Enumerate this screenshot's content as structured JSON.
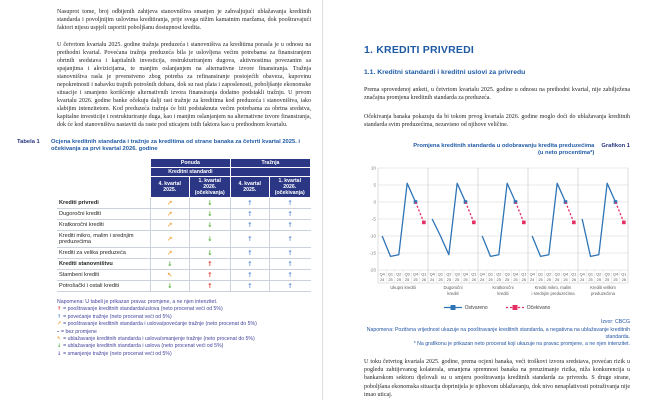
{
  "page_left": {
    "paragraph1": "Nasuprot tome, broj odbijenih zahtjeva stanovništva smanjen je zahvaljujući ublažavanja kreditnih standarda i povoljnijim uslovima kreditiranja, prije svega nižim kamatnim maržama, dok pooštravajući faktori nijesu uspjeli usporiti poboljšanu dostupnost kredita.",
    "paragraph2": "U četvrtom kvartalu 2025. godine tražnja preduzeća i stanovništva za kreditima porasla je u odnosu na prethodni kvartal. Povećana tražnja preduzeća bila je uslovljena većim potrebama za finansiranjem obrtnih sredstava i kapitalnih investicija, restrukturiranjem dugova, aktivnostima povezanim sa spajanjima i akvizicijama, te manjim oslanjanjem na alternativne izvore finansiranja. Tražnja stanovništva rasla je prvenstveno zbog potreba za refinansiranje postojećih obaveza, kupovinu nepokretnosti i nabavku trajnih potrošnih dobara, dok su rast plata i zaposlenosti, poboljšanje ekonomske situacije i smanjeno korišćenje alternativnih izvora finansiranja dodatno podstakli tražnju. U prvom kvartalu 2026. godine banke očekuju dalji rast tražnje za kreditima kod preduzeća i stanovništva, iako slabijim intenzitetom. Kod preduzeća tražnja će biti podstaknuta većim potrebama za obrtna sredstva, kapitalne investicije i restrukturiranje duga, kao i manjim oslanjanjem na alternativne izvore finansiranja, dok će kod stanovništva nastaviti da raste pod uticajem istih faktora kao u prethodnom kvartalu.",
    "table": {
      "label": "Tabela 1",
      "caption": "Ocjena kreditnih standarda i tražnje za kreditima od strane banaka za četvrti kvartal 2025. i očekivanja za prvi kvartal 2026. godine",
      "col_groups": [
        "Ponuda",
        "Tražnja"
      ],
      "sub_group": "Kreditni standardi",
      "col_headers": [
        "4. kvartal 2025.",
        "1. kvartal 2026. (očekivanja)",
        "4. kvartal 2025.",
        "1. kvartal 2026. (očekivanja)"
      ],
      "rows": [
        {
          "label": "Krediti privredi",
          "bold": true,
          "cells": [
            {
              "glyph": "↗",
              "color": "orange"
            },
            {
              "glyph": "↓",
              "color": "green"
            },
            {
              "glyph": "↑",
              "color": "blue"
            },
            {
              "glyph": "↑",
              "color": "blue"
            }
          ]
        },
        {
          "label": "Dugoročni krediti",
          "bold": false,
          "cells": [
            {
              "glyph": "↗",
              "color": "orange"
            },
            {
              "glyph": "↓",
              "color": "green"
            },
            {
              "glyph": "↑",
              "color": "blue"
            },
            {
              "glyph": "↑",
              "color": "blue"
            }
          ]
        },
        {
          "label": "Kratkoročni krediti",
          "bold": false,
          "cells": [
            {
              "glyph": "↗",
              "color": "orange"
            },
            {
              "glyph": "↓",
              "color": "green"
            },
            {
              "glyph": "↑",
              "color": "blue"
            },
            {
              "glyph": "↑",
              "color": "blue"
            }
          ]
        },
        {
          "label": "Krediti mikro, malim i srednjim preduzećima",
          "bold": false,
          "cells": [
            {
              "glyph": "↗",
              "color": "orange"
            },
            {
              "glyph": "↓",
              "color": "green"
            },
            {
              "glyph": "↑",
              "color": "blue"
            },
            {
              "glyph": "↑",
              "color": "blue"
            }
          ]
        },
        {
          "label": "Krediti za velika preduzeća",
          "bold": false,
          "cells": [
            {
              "glyph": "↗",
              "color": "orange"
            },
            {
              "glyph": "↓",
              "color": "green"
            },
            {
              "glyph": "↑",
              "color": "blue"
            },
            {
              "glyph": "↑",
              "color": "blue"
            }
          ]
        },
        {
          "label": "Krediti stanovništvu",
          "bold": true,
          "cells": [
            {
              "glyph": "↓",
              "color": "green"
            },
            {
              "glyph": "↑",
              "color": "red"
            },
            {
              "glyph": "↑",
              "color": "blue"
            },
            {
              "glyph": "↑",
              "color": "blue"
            }
          ]
        },
        {
          "label": "Stambeni krediti",
          "bold": false,
          "cells": [
            {
              "glyph": "↖",
              "color": "orange"
            },
            {
              "glyph": "↑",
              "color": "red"
            },
            {
              "glyph": "↑",
              "color": "blue"
            },
            {
              "glyph": "↑",
              "color": "blue"
            }
          ]
        },
        {
          "label": "Potrošački i ostali krediti",
          "bold": false,
          "cells": [
            {
              "glyph": "↓",
              "color": "green"
            },
            {
              "glyph": "↑",
              "color": "red"
            },
            {
              "glyph": "↑",
              "color": "blue"
            },
            {
              "glyph": "↑",
              "color": "blue"
            }
          ]
        }
      ]
    },
    "notes": {
      "header": "Napomena: U tabeli je prikazan pravac promjene, a ne njen intenzitet.",
      "items": [
        {
          "glyph": "↑",
          "color": "red",
          "text": "= pooštravanje kreditnih standarda/uslova (neto procenat veći od 5%)"
        },
        {
          "glyph": "↑",
          "color": "blue",
          "text": "= povećanje tražnje (neto procenat veći od 5%)"
        },
        {
          "glyph": "↗",
          "color": "orange",
          "text": "= pooštravanje kreditnih standarda i uslova/povećanje tražnje (neto procenat do 5%)"
        },
        {
          "glyph": "-",
          "color": "note",
          "text": "= bez promjene"
        },
        {
          "glyph": "↖",
          "color": "orange",
          "text": "= ublažavanje kreditnih standarda i uslova/smanjenje tražnje (neto procenat do 5%)"
        },
        {
          "glyph": "↓",
          "color": "green",
          "text": "= ublažavanje kreditnih standarda i uslova (neto procenat veći od 5%)"
        },
        {
          "glyph": "↓",
          "color": "purple",
          "text": "= smanjenje tražnje (neto procenat veći od 5%)"
        }
      ]
    }
  },
  "page_right": {
    "heading": "1. KREDITI PRIVREDI",
    "subheading": "1.1. Kreditni standardi i kreditni uslovi za privredu",
    "paragraph1": "Prema sprovedenoj anketi, u četvrtom kvartalu 2025. godine u odnosu na prethodni kvartal, nije zabilježena značajna promjena kreditnih standarda za preduzeća.",
    "paragraph2": "Očekivanja banaka pokazuju da bi tokom prvog kvartala 2026. godine moglo doći do ublažavanja kreditnih standarda svim preduzećima, nezavisno od njihove veličine.",
    "chart_title": "Promjena kreditnih standarda u odobravanju kredita preduzećima",
    "chart_subtitle": "(u neto procentima*)",
    "figure_label": "Grafikon 1",
    "source": "Izvor: CBCG",
    "note": "Napomena: Pozitivna vrijednost ukazuje na pooštravanje kreditnih standarda, a negativna na ublažavanje kreditnih standarda.",
    "footnote": "* Na grafikonu je prikazan neto procenat koji ukazuje na pravac promjene, a ne njen intenzitet.",
    "paragraph3": "U toku četvrtog kvartala 2025. godine, prema ocjeni banaka, veći troškovi izvora sredstava, povećan rizik u pogledu zahtijevanog kolaterala, smanjena spremnost banaka na preuzimanje rizika, niža konkurencija u bankarskom sektoru djelovali su u smjeru pooštravanja kreditnih standarda za privredu. S druge strane, poboljšana ekonomska situacija doprinijela je njihovom ublažavanju, dok nivo nenaplativosti potraživanja nije imao uticaj."
  },
  "chart_data": {
    "type": "line",
    "x": [
      "Q4 24",
      "Q1 25",
      "Q2 25",
      "Q3 25",
      "Q4 25",
      "Q1 26"
    ],
    "ylim": [
      -20,
      10
    ],
    "yticks": [
      10,
      5,
      0,
      -5,
      -10,
      -15,
      -20
    ],
    "series_names": [
      "Ostvareno",
      "Očekivano"
    ],
    "colors": {
      "actual": "#2e74b5",
      "expected": "#e42f63"
    },
    "panels": [
      {
        "name": "Ukupni krediti",
        "actual": [
          -10,
          -16,
          -15.5,
          5.5,
          0
        ],
        "expected_last": -6
      },
      {
        "name": "Dugoročni krediti",
        "actual": [
          -5,
          -10,
          -15.5,
          5.5,
          0
        ],
        "expected_last": -6
      },
      {
        "name": "Kratkoročni krediti",
        "actual": [
          -10,
          -16,
          -15.5,
          5.5,
          0
        ],
        "expected_last": -6
      },
      {
        "name": "Krediti mikro, malim i srednjim preduzećima",
        "actual": [
          -10,
          -16,
          -15.5,
          5.5,
          0
        ],
        "expected_last": -6
      },
      {
        "name": "Krediti velikim preduzećima",
        "actual": [
          -5,
          -16,
          -15.5,
          5.5,
          0
        ],
        "expected_last": -6
      }
    ]
  },
  "colors": {
    "red": "#df4238",
    "blue": "#6494d6",
    "orange": "#f0a23c",
    "green": "#5cb648",
    "purple": "#7e57c2",
    "note": "#44449e"
  }
}
